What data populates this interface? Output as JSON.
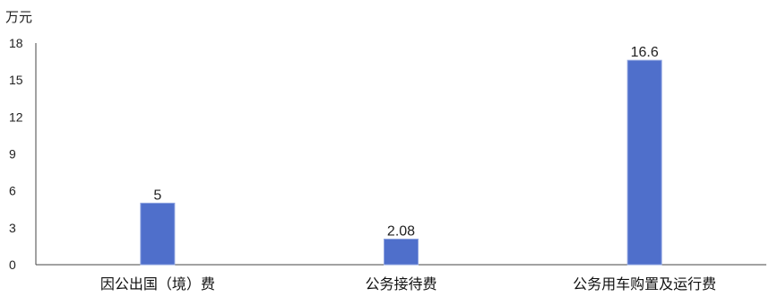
{
  "chart_data": {
    "type": "bar",
    "y_unit": "万元",
    "categories": [
      "因公出国（境）费",
      "公务接待费",
      "公务用车购置及运行费"
    ],
    "values": [
      5,
      2.08,
      16.6
    ],
    "data_labels": [
      "5",
      "2.08",
      "16.6"
    ],
    "ylim": [
      0,
      18
    ],
    "yticks": [
      0,
      3,
      6,
      9,
      12,
      15,
      18
    ],
    "grid": false,
    "bar_color": "#4f6fcb",
    "bar_edge_color": "#8fa4e0"
  }
}
